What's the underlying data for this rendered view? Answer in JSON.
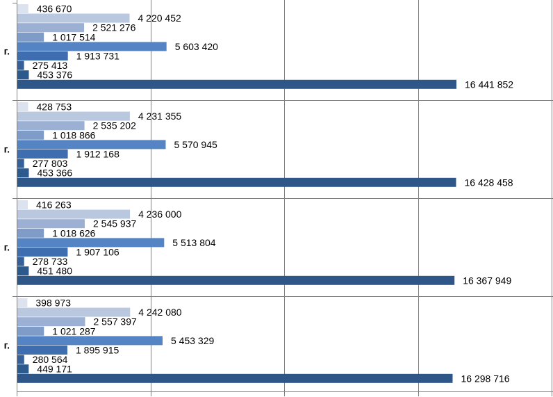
{
  "chart_data": {
    "type": "bar",
    "orientation": "horizontal",
    "categories": [
      "г.",
      "г.",
      "г.",
      "г."
    ],
    "series": [
      {
        "values": [
          436670,
          428753,
          416263,
          398973
        ],
        "color": "#dce3ef"
      },
      {
        "values": [
          4220452,
          4231355,
          4236000,
          4242080
        ],
        "color": "#b9c7df"
      },
      {
        "values": [
          2521276,
          2535202,
          2545937,
          2557397
        ],
        "color": "#9cb0d4"
      },
      {
        "values": [
          1017514,
          1018866,
          1018626,
          1021287
        ],
        "color": "#7f9cc8"
      },
      {
        "values": [
          5603420,
          5570945,
          5513804,
          5453329
        ],
        "color": "#5584c4"
      },
      {
        "values": [
          1913731,
          1912168,
          1907106,
          1895915
        ],
        "color": "#3e6db0"
      },
      {
        "values": [
          275413,
          277803,
          278733,
          280564
        ],
        "color": "#35609a"
      },
      {
        "values": [
          453376,
          453366,
          451480,
          449171
        ],
        "color": "#2d5a8c"
      },
      {
        "values": [
          16441852,
          16428458,
          16367949,
          16298716
        ],
        "color": "#2f5688"
      }
    ],
    "value_labels": [
      [
        "436 670",
        "428 753",
        "416 263",
        "398 973"
      ],
      [
        "4 220 452",
        "4 231 355",
        "4 236 000",
        "4 242 080"
      ],
      [
        "2 521 276",
        "2 535 202",
        "2 545 937",
        "2 557 397"
      ],
      [
        "1 017 514",
        "1 018 866",
        "1 018 626",
        "1 021 287"
      ],
      [
        "5 603 420",
        "5 570 945",
        "5 513 804",
        "5 453 329"
      ],
      [
        "1 913 731",
        "1 912 168",
        "1 907 106",
        "1 895 915"
      ],
      [
        "275 413",
        "277 803",
        "278 733",
        "280 564"
      ],
      [
        "453 376",
        "453 366",
        "451 480",
        "449 171"
      ],
      [
        "16 441 852",
        "16 428 458",
        "16 367 949",
        "16 298 716"
      ]
    ],
    "x_axis": {
      "min": 0,
      "max": 20000000,
      "major_unit": 5000000
    },
    "grid": "vertical",
    "legend": "none"
  }
}
